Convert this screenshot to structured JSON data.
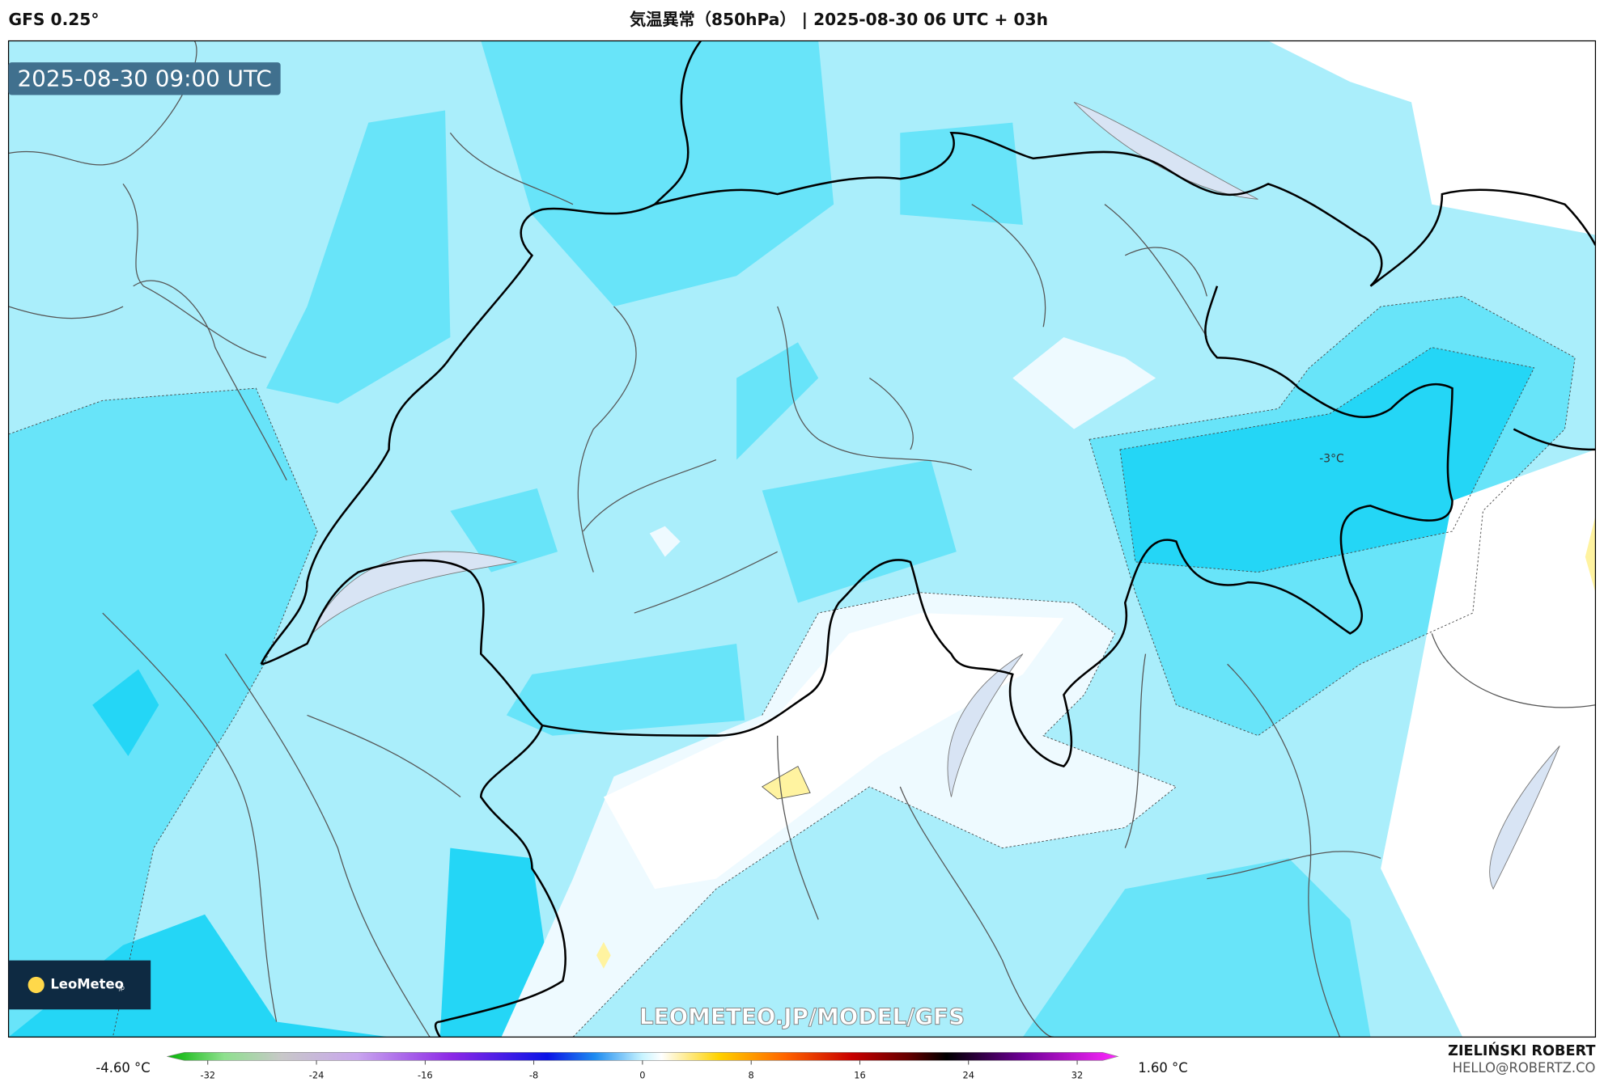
{
  "header": {
    "model": "GFS 0.25°",
    "title": "気温異常（850hPa） | 2025-08-30 06 UTC + 03h"
  },
  "map": {
    "timestamp": "2025-08-30 09:00 UTC",
    "contour_label": "-3°C",
    "logo": "LeoMeteo",
    "logo_suffix": "jp",
    "watermark": "LEOMETEO.JP/MODEL/GFS"
  },
  "colorbar": {
    "min_label": "-4.60 °C",
    "max_label": "1.60 °C",
    "lim": [
      -35,
      35
    ],
    "ticks": [
      -32,
      -24,
      -16,
      -8,
      0,
      8,
      16,
      24,
      32
    ]
  },
  "footer": {
    "author": "ZIELIŃSKI ROBERT",
    "email": "HELLO@ROBERTZ.CO"
  }
}
